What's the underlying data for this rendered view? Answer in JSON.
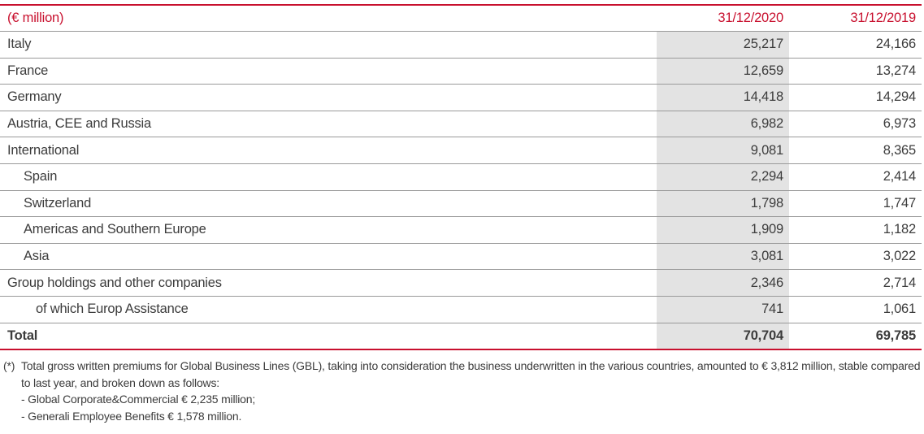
{
  "table": {
    "header": {
      "label": "(€ million)",
      "col_2020": "31/12/2020",
      "col_2019": "31/12/2019"
    },
    "rows": [
      {
        "label": "Italy",
        "v2020": "25,217",
        "v2019": "24,166",
        "level": 0
      },
      {
        "label": "France",
        "v2020": "12,659",
        "v2019": "13,274",
        "level": 0
      },
      {
        "label": "Germany",
        "v2020": "14,418",
        "v2019": "14,294",
        "level": 0
      },
      {
        "label": "Austria, CEE and Russia",
        "v2020": "6,982",
        "v2019": "6,973",
        "level": 0
      },
      {
        "label": "International",
        "v2020": "9,081",
        "v2019": "8,365",
        "level": 0
      },
      {
        "label": "Spain",
        "v2020": "2,294",
        "v2019": "2,414",
        "level": 1
      },
      {
        "label": "Switzerland",
        "v2020": "1,798",
        "v2019": "1,747",
        "level": 1
      },
      {
        "label": "Americas and Southern Europe",
        "v2020": "1,909",
        "v2019": "1,182",
        "level": 1
      },
      {
        "label": "Asia",
        "v2020": "3,081",
        "v2019": "3,022",
        "level": 1
      },
      {
        "label": "Group holdings and other companies",
        "v2020": "2,346",
        "v2019": "2,714",
        "level": 0
      },
      {
        "label": "of which Europ Assistance",
        "v2020": "741",
        "v2019": "1,061",
        "level": 2
      }
    ],
    "total": {
      "label": "Total",
      "v2020": "70,704",
      "v2019": "69,785"
    }
  },
  "footnote": {
    "mark": "(*)",
    "text": "Total gross written premiums for Global Business Lines (GBL), taking into consideration the business underwritten in the various countries, amounted to € 3,812 million, stable compared to last year, and broken down as follows:",
    "items": [
      "- Global Corporate&Commercial € 2,235 million;",
      "- Generali Employee Benefits € 1,578 million."
    ]
  },
  "colors": {
    "accent": "#c8102e",
    "highlight_column": "#e3e3e3",
    "text": "#3c3c3c"
  }
}
